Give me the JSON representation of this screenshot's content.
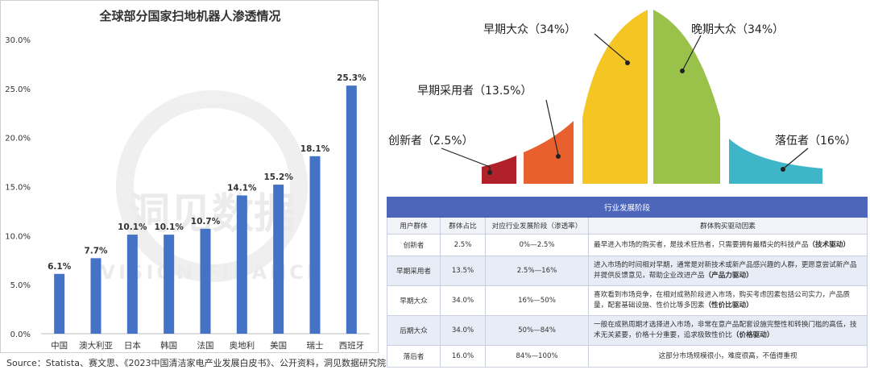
{
  "source_note": "Source：Statista、赛文思、《2023中国清洁家电产业发展白皮书》、公开资料，洞见数据研究院",
  "watermark": {
    "cn": "洞见数据",
    "en": "VISION FINANCE"
  },
  "colors": {
    "bar": "#4472c4",
    "innovators": "#b0212a",
    "early_adopters": "#e8602d",
    "early_majority": "#f5c623",
    "late_majority": "#9ac24b",
    "laggards": "#3fb6c8",
    "table_header": "#4c66b9",
    "table_zebra": "#e8ecf7"
  },
  "chart_data": [
    {
      "type": "bar",
      "title": "全球部分国家扫地机器人渗透情况",
      "categories": [
        "中国",
        "澳大利亚",
        "日本",
        "韩国",
        "法国",
        "奥地利",
        "美国",
        "瑞士",
        "西班牙"
      ],
      "values": [
        6.1,
        7.7,
        10.1,
        10.1,
        10.7,
        14.1,
        15.2,
        18.1,
        25.3
      ],
      "value_labels": [
        "6.1%",
        "7.7%",
        "10.1%",
        "10.1%",
        "10.7%",
        "14.1%",
        "15.2%",
        "18.1%",
        "25.3%"
      ],
      "ylim": [
        0,
        30
      ],
      "yticks": [
        0,
        5,
        10,
        15,
        20,
        25,
        30
      ],
      "ytick_labels": [
        "0.0%",
        "5.0%",
        "10.0%",
        "15.0%",
        "20.0%",
        "25.0%",
        "30.0%"
      ],
      "xlabel": "",
      "ylabel": "",
      "grid": false,
      "legend": "none"
    },
    {
      "type": "area",
      "subtype": "technology-adoption-curve",
      "segments": [
        {
          "label": "创新者（2.5%）",
          "value": 2.5
        },
        {
          "label": "早期采用者（13.5%）",
          "value": 13.5
        },
        {
          "label": "早期大众（34%）",
          "value": 34
        },
        {
          "label": "晚期大众（34%）",
          "value": 34
        },
        {
          "label": "落伍者（16%）",
          "value": 16
        }
      ]
    }
  ],
  "table": {
    "title": "行业发展阶段",
    "headers": [
      "用户群体",
      "群体占比",
      "对应行业发展阶段（渗透率）",
      "群体购买驱动因素"
    ],
    "rows": [
      {
        "group": "创新者",
        "share": "2.5%",
        "stage": "0%—2.5%",
        "desc": "最早进入市场的购买者，是技术狂热者，只需要拥有最精尖的科技产品",
        "driver": "（技术驱动）"
      },
      {
        "group": "早期采用者",
        "share": "13.5%",
        "stage": "2.5%—16%",
        "desc": "进入市场的时间相对早期，通常是对新技术或新产品感兴趣的人群，更愿意尝试新产品并提供反馈意见，帮助企业改进产品",
        "driver": "（产品力驱动）"
      },
      {
        "group": "早期大众",
        "share": "34.0%",
        "stage": "16%—50%",
        "desc": "喜欢看到市场竞争，在相对成熟阶段进入市场，购买考虑因素包括公司实力，产品质量，配套基础设施、性价比等多因素",
        "driver": "（性价比驱动）"
      },
      {
        "group": "后期大众",
        "share": "34.0%",
        "stage": "50%—84%",
        "desc": "一般在成熟周期才选择进入市场，非常在意产品配套设施完整性和转换门槛的高低，技术无关紧要，价格十分重要，追求极致性价比",
        "driver": "（价格驱动）"
      },
      {
        "group": "落后者",
        "share": "16.0%",
        "stage": "84%—100%",
        "desc": "这部分市场规模很小，难度很高，不值得重视",
        "driver": ""
      }
    ]
  }
}
